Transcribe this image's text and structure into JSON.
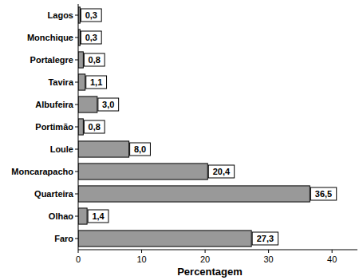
{
  "chart_data": {
    "type": "bar",
    "orientation": "horizontal",
    "categories": [
      "Lagos",
      "Monchique",
      "Portalegre",
      "Tavira",
      "Albufeira",
      "Portimão",
      "Loule",
      "Moncarapacho",
      "Quarteira",
      "Olhao",
      "Faro"
    ],
    "values": [
      0.3,
      0.3,
      0.8,
      1.1,
      3.0,
      0.8,
      8.0,
      20.4,
      36.5,
      1.4,
      27.3
    ],
    "value_labels": [
      "0,3",
      "0,3",
      "0,8",
      "1,1",
      "3,0",
      "0,8",
      "8,0",
      "20,4",
      "36,5",
      "1,4",
      "27,3"
    ],
    "data_labels": true,
    "color": "#999999",
    "x_label": "Percentagem",
    "xlim": [
      0,
      44
    ],
    "xticks": [
      0,
      10,
      20,
      30,
      40
    ],
    "grid": false
  }
}
